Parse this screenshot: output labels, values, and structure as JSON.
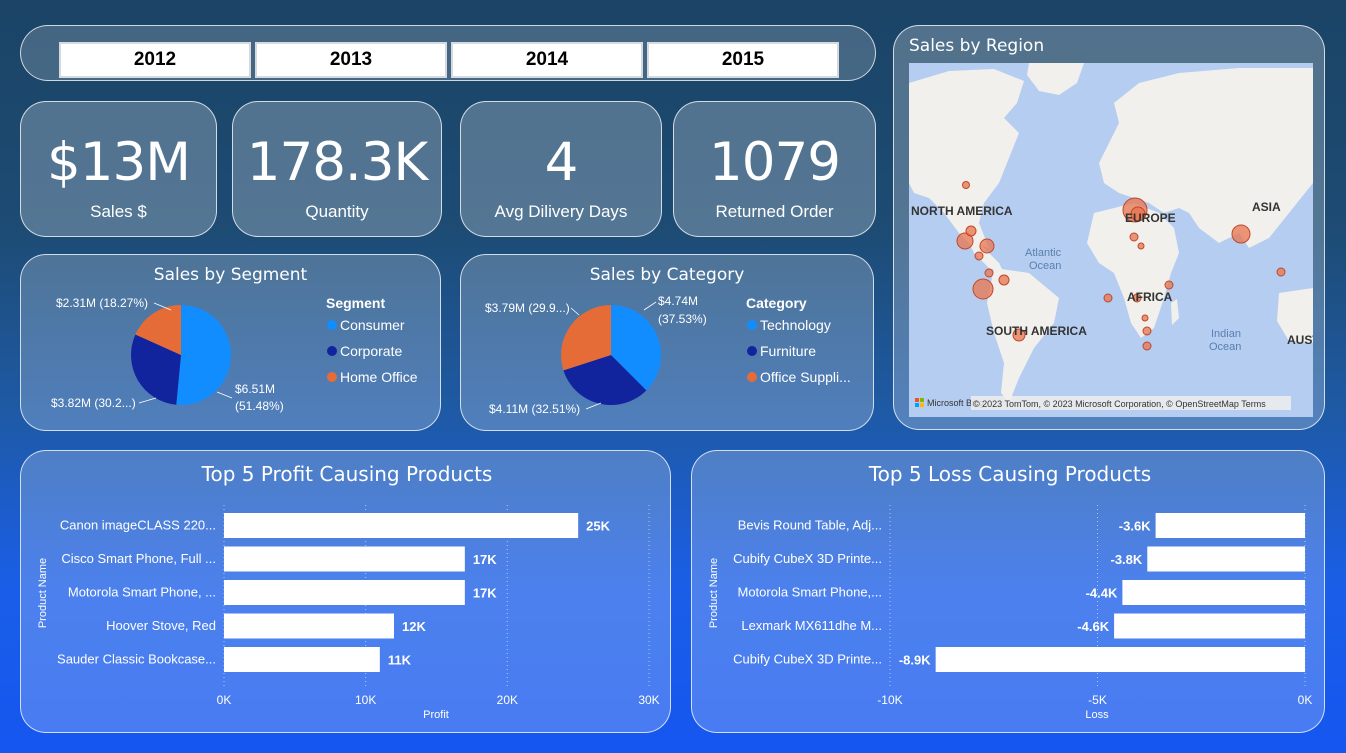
{
  "slicer": {
    "years": [
      "2012",
      "2013",
      "2014",
      "2015"
    ]
  },
  "kpis": [
    {
      "value": "$13M",
      "label": "Sales $"
    },
    {
      "value": "178.3K",
      "label": "Quantity"
    },
    {
      "value": "4",
      "label": "Avg Dilivery Days"
    },
    {
      "value": "1079",
      "label": "Returned Order"
    }
  ],
  "map": {
    "title": "Sales by Region",
    "region_labels": [
      "NORTH AMERICA",
      "EUROPE",
      "ASIA",
      "AFRICA",
      "SOUTH AMERICA",
      "AUST"
    ],
    "ocean_labels": [
      [
        "Atlantic",
        "Ocean"
      ],
      [
        "Indian",
        "Ocean"
      ]
    ],
    "attribution": "© 2023 TomTom, © 2023 Microsoft Corporation, © OpenStreetMap  Terms",
    "logo": "Microsoft Bing",
    "colors": {
      "water": "#b5cdf0",
      "land": "#f2f0ec",
      "bubble": "#e8744d",
      "bubble_stroke": "#c0472a"
    }
  },
  "chart_data": [
    {
      "type": "pie",
      "title": "Sales by Segment",
      "legend_title": "Segment",
      "slices": [
        {
          "name": "Consumer",
          "value": 6.51,
          "label": "$6.51M",
          "pct": "(51.48%)",
          "color": "#118dff"
        },
        {
          "name": "Corporate",
          "value": 3.82,
          "label": "$3.82M (30.2...)",
          "pct": "",
          "color": "#12239e"
        },
        {
          "name": "Home Office",
          "value": 2.31,
          "label": "$2.31M (18.27%)",
          "pct": "",
          "color": "#e66c37"
        }
      ]
    },
    {
      "type": "pie",
      "title": "Sales by Category",
      "legend_title": "Category",
      "slices": [
        {
          "name": "Technology",
          "value": 4.74,
          "label": "$4.74M",
          "pct": "(37.53%)",
          "color": "#118dff"
        },
        {
          "name": "Furniture",
          "value": 4.11,
          "label": "$4.11M (32.51%)",
          "pct": "",
          "color": "#12239e"
        },
        {
          "name": "Office Suppli...",
          "value": 3.79,
          "label": "$3.79M (29.9...)",
          "pct": "",
          "color": "#e66c37"
        }
      ]
    },
    {
      "type": "bar",
      "title": "Top 5 Profit Causing Products",
      "xlabel": "Profit",
      "ylabel": "Product Name",
      "xlim": [
        0,
        30000
      ],
      "ticks": [
        "0K",
        "10K",
        "20K",
        "30K"
      ],
      "categories": [
        "Canon imageCLASS 220...",
        "Cisco Smart Phone, Full ...",
        "Motorola Smart Phone, ...",
        "Hoover Stove, Red",
        "Sauder Classic Bookcase..."
      ],
      "values": [
        25000,
        17000,
        17000,
        12000,
        11000
      ],
      "value_labels": [
        "25K",
        "17K",
        "17K",
        "12K",
        "11K"
      ]
    },
    {
      "type": "bar",
      "title": "Top 5 Loss Causing Products",
      "xlabel": "Loss",
      "ylabel": "Product Name",
      "xlim": [
        -10000,
        0
      ],
      "ticks": [
        "-10K",
        "-5K",
        "0K"
      ],
      "categories": [
        "Bevis Round Table, Adj...",
        "Cubify CubeX 3D Printe...",
        "Motorola Smart Phone,...",
        "Lexmark MX611dhe M...",
        "Cubify CubeX 3D Printe..."
      ],
      "values": [
        -3600,
        -3800,
        -4400,
        -4600,
        -8900
      ],
      "value_labels": [
        "-3.6K",
        "-3.8K",
        "-4.4K",
        "-4.6K",
        "-8.9K"
      ]
    }
  ]
}
